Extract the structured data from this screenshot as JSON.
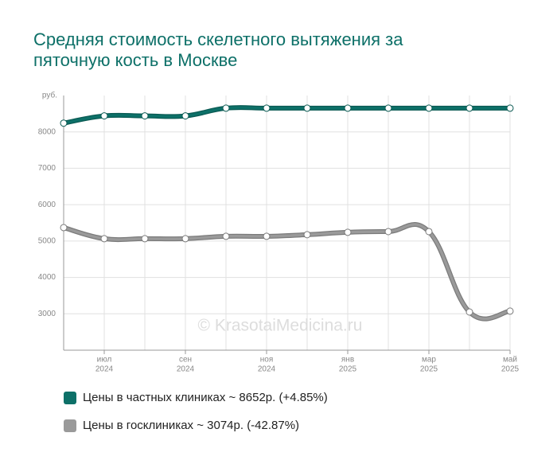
{
  "chart_data": {
    "type": "line",
    "title": [
      "Средняя стоимость скелетного вытяжения за",
      "пяточную кость в Москве"
    ],
    "y_unit": "руб.",
    "watermark": "© KrasotaiMedicina.ru",
    "categories": [
      null,
      [
        "июл",
        "2024"
      ],
      null,
      [
        "сен",
        "2024"
      ],
      null,
      [
        "ноя",
        "2024"
      ],
      null,
      [
        "янв",
        "2025"
      ],
      null,
      [
        "мар",
        "2025"
      ],
      null,
      [
        "май",
        "2025"
      ]
    ],
    "series": [
      {
        "name": "Цены в частных клиниках ~ 8652р. (+4.85%)",
        "color": "#0d7068",
        "values": [
          8240,
          8440,
          8440,
          8440,
          8652,
          8652,
          8652,
          8652,
          8652,
          8652,
          8652,
          8652
        ]
      },
      {
        "name": "Цены в госклиниках ~ 3074р. (-42.87%)",
        "color": "#9a9a9a",
        "values": [
          5370,
          5065,
          5065,
          5065,
          5130,
          5130,
          5175,
          5240,
          5260,
          5260,
          3050,
          3074
        ]
      }
    ],
    "ylim": [
      2000,
      9000
    ],
    "yticks": [
      3000,
      4000,
      5000,
      6000,
      7000,
      8000
    ],
    "grid": true
  }
}
